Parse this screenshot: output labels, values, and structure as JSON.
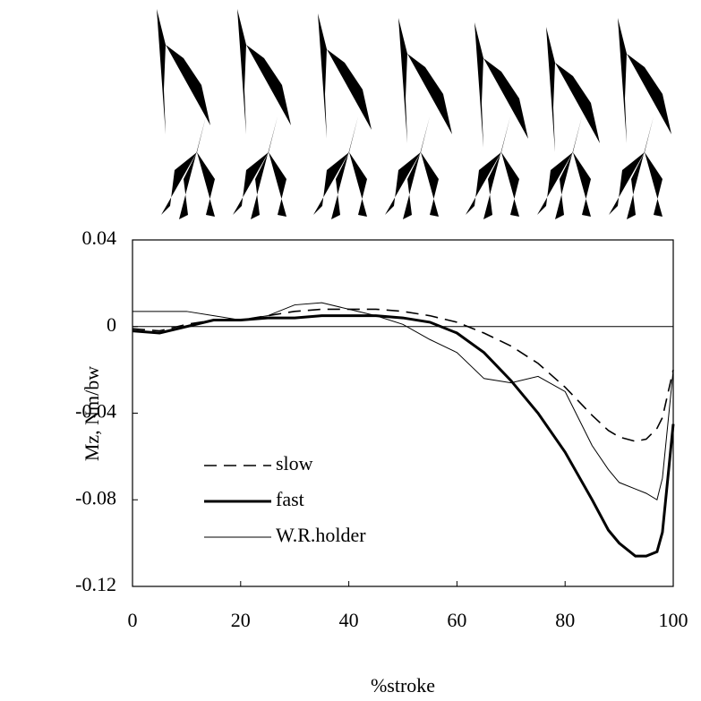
{
  "chart_data": {
    "type": "line",
    "x_label": "%stroke",
    "y_label": "Mz, Nm/bw",
    "x": [
      0,
      5,
      10,
      15,
      20,
      25,
      30,
      35,
      40,
      45,
      50,
      55,
      60,
      65,
      70,
      75,
      80,
      85,
      88,
      90,
      93,
      95,
      97,
      98,
      100
    ],
    "series": [
      {
        "name": "slow",
        "color": "#000000",
        "dash": "14 8",
        "width": 1.6,
        "values": [
          -0.001,
          -0.002,
          0.001,
          0.003,
          0.003,
          0.005,
          0.007,
          0.008,
          0.008,
          0.008,
          0.007,
          0.005,
          0.002,
          -0.003,
          -0.009,
          -0.017,
          -0.028,
          -0.041,
          -0.048,
          -0.051,
          -0.053,
          -0.052,
          -0.047,
          -0.042,
          -0.02
        ]
      },
      {
        "name": "fast",
        "color": "#000000",
        "dash": "none",
        "width": 3,
        "values": [
          -0.002,
          -0.003,
          0.0,
          0.003,
          0.003,
          0.004,
          0.004,
          0.005,
          0.005,
          0.005,
          0.004,
          0.002,
          -0.003,
          -0.012,
          -0.025,
          -0.04,
          -0.058,
          -0.08,
          -0.094,
          -0.1,
          -0.106,
          -0.106,
          -0.104,
          -0.095,
          -0.045
        ]
      },
      {
        "name": "W.R.holder",
        "color": "#000000",
        "dash": "none",
        "width": 1,
        "values": [
          0.007,
          0.007,
          0.007,
          0.005,
          0.003,
          0.005,
          0.01,
          0.011,
          0.008,
          0.005,
          0.001,
          -0.006,
          -0.012,
          -0.024,
          -0.026,
          -0.023,
          -0.03,
          -0.055,
          -0.066,
          -0.072,
          -0.075,
          -0.077,
          -0.08,
          -0.07,
          -0.02
        ]
      }
    ],
    "xlim": [
      0,
      100
    ],
    "xticks": [
      0,
      20,
      40,
      60,
      80,
      100
    ],
    "ylim": [
      -0.12,
      0.04
    ],
    "yticks": [
      -0.12,
      -0.08,
      -0.04,
      0,
      0.04
    ],
    "zero_line": true,
    "legend": "lower-left"
  }
}
